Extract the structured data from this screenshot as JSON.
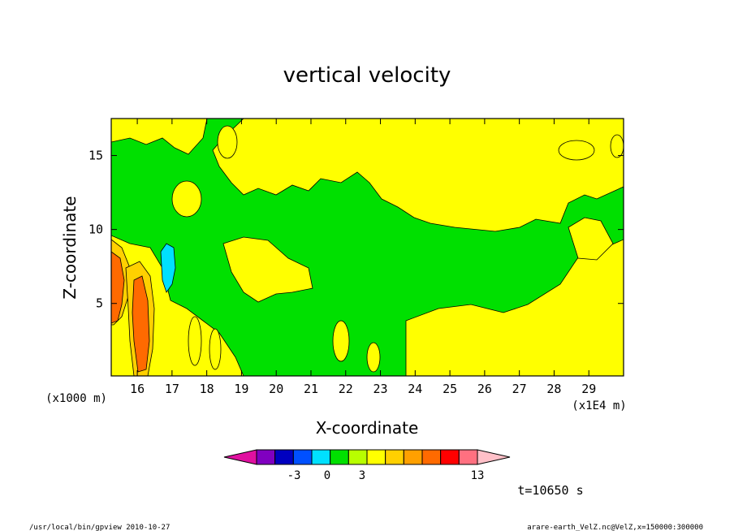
{
  "chart_data": {
    "type": "heatmap",
    "title": "vertical velocity",
    "xlabel": "X-coordinate",
    "ylabel": "Z-coordinate",
    "x_unit": "(x1E4 m)",
    "y_unit": "(x1000 m)",
    "xlim": [
      15.25,
      30.0
    ],
    "ylim": [
      0.1,
      17.5
    ],
    "x_ticks": [
      16,
      17,
      18,
      19,
      20,
      21,
      22,
      23,
      24,
      25,
      26,
      27,
      28,
      29
    ],
    "y_ticks": [
      5,
      10,
      15
    ],
    "colorbar": {
      "colors": [
        "#e010a0",
        "#8000c0",
        "#0000c0",
        "#0050ff",
        "#00e0ff",
        "#00e000",
        "#b8ff00",
        "#ffff00",
        "#ffd000",
        "#ffa000",
        "#ff6a00",
        "#ff0000",
        "#ff7080",
        "#ffc0c8"
      ],
      "labels": [
        {
          "text": "-3",
          "value": -3
        },
        {
          "text": "0",
          "value": 0
        },
        {
          "text": "3",
          "value": 3
        },
        {
          "text": "13",
          "value": 13
        }
      ]
    },
    "fields": {
      "background": "#00e000",
      "positive_weak": "#ffff00",
      "positive_mid": "#ffd000",
      "positive_strong": "#ff6a00",
      "negative": "#00e0ff"
    }
  },
  "annotations": {
    "time": "t=10650 s",
    "footer_left": "/usr/local/bin/gpview   2010-10-27",
    "footer_right": "arare-earth_VelZ.nc@VelZ,x=150000:300000"
  }
}
